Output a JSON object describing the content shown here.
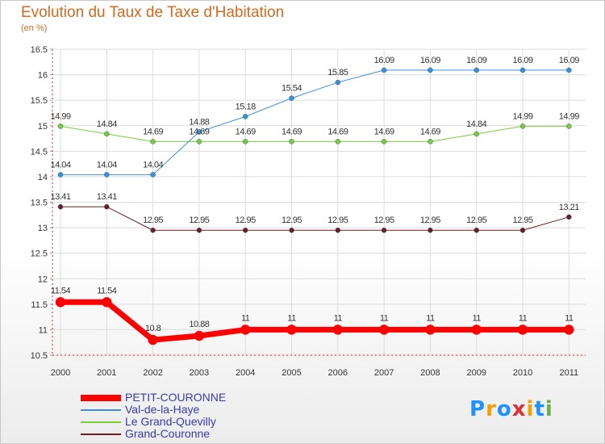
{
  "title": "Evolution du Taux de Taxe d'Habitation",
  "unit": "(en %)",
  "logo": {
    "text": "Proxiti",
    "letters": [
      {
        "ch": "P",
        "color": "#1e90ff"
      },
      {
        "ch": "r",
        "color": "#f5a000"
      },
      {
        "ch": "o",
        "color": "#1e90ff"
      },
      {
        "ch": "x",
        "color": "#e03030"
      },
      {
        "ch": "i",
        "color": "#f5a000"
      },
      {
        "ch": "t",
        "color": "#1e90ff"
      },
      {
        "ch": "i",
        "color": "#6ab04c"
      }
    ]
  },
  "chart_data": {
    "type": "line",
    "x": [
      "2000",
      "2001",
      "2002",
      "2003",
      "2004",
      "2005",
      "2006",
      "2007",
      "2008",
      "2009",
      "2010",
      "2011"
    ],
    "ylim": [
      10.5,
      16.5
    ],
    "yticks": [
      "10.5",
      "11",
      "11.5",
      "12",
      "12.5",
      "13",
      "13.5",
      "14",
      "14.5",
      "15",
      "15.5",
      "16",
      "16.5"
    ],
    "legend_position": "bottom-left",
    "series": [
      {
        "name": "Grand-Couronne",
        "color": "#6b1f1f",
        "width": 1,
        "values": [
          13.41,
          13.41,
          12.95,
          12.95,
          12.95,
          12.95,
          12.95,
          12.95,
          12.95,
          12.95,
          12.95,
          13.21
        ],
        "labels": [
          "13.41",
          "13.41",
          "12.95",
          "12.95",
          "12.95",
          "12.95",
          "12.95",
          "12.95",
          "12.95",
          "12.95",
          "12.95",
          "13.21"
        ]
      },
      {
        "name": "Le Grand-Quevilly",
        "color": "#7ccc3c",
        "width": 1,
        "values": [
          14.99,
          14.84,
          14.69,
          14.69,
          14.69,
          14.69,
          14.69,
          14.69,
          14.69,
          14.84,
          14.99,
          14.99
        ],
        "labels": [
          "14.99",
          "14.84",
          "14.69",
          "14.69",
          "14.69",
          "14.69",
          "14.69",
          "14.69",
          "14.69",
          "14.84",
          "14.99",
          "14.99"
        ]
      },
      {
        "name": "Val-de-la-Haye",
        "color": "#3c8fd8",
        "width": 1,
        "values": [
          14.04,
          14.04,
          14.04,
          14.88,
          15.18,
          15.54,
          15.85,
          16.09,
          16.09,
          16.09,
          16.09,
          16.09
        ],
        "labels": [
          "14.04",
          "14.04",
          "14.04",
          "14.88",
          "15.18",
          "15.54",
          "15.85",
          "16.09",
          "16.09",
          "16.09",
          "16.09",
          "16.09"
        ]
      },
      {
        "name": "PETIT-COURONNE",
        "color": "#ff0000",
        "width": 7,
        "values": [
          11.54,
          11.54,
          10.8,
          10.88,
          11,
          11,
          11,
          11,
          11,
          11,
          11,
          11
        ],
        "labels": [
          "11.54",
          "11.54",
          "10.8",
          "10.88",
          "11",
          "11",
          "11",
          "11",
          "11",
          "11",
          "11",
          "11"
        ]
      }
    ],
    "legend_order": [
      "PETIT-COURONNE",
      "Val-de-la-Haye",
      "Le Grand-Quevilly",
      "Grand-Couronne"
    ]
  }
}
